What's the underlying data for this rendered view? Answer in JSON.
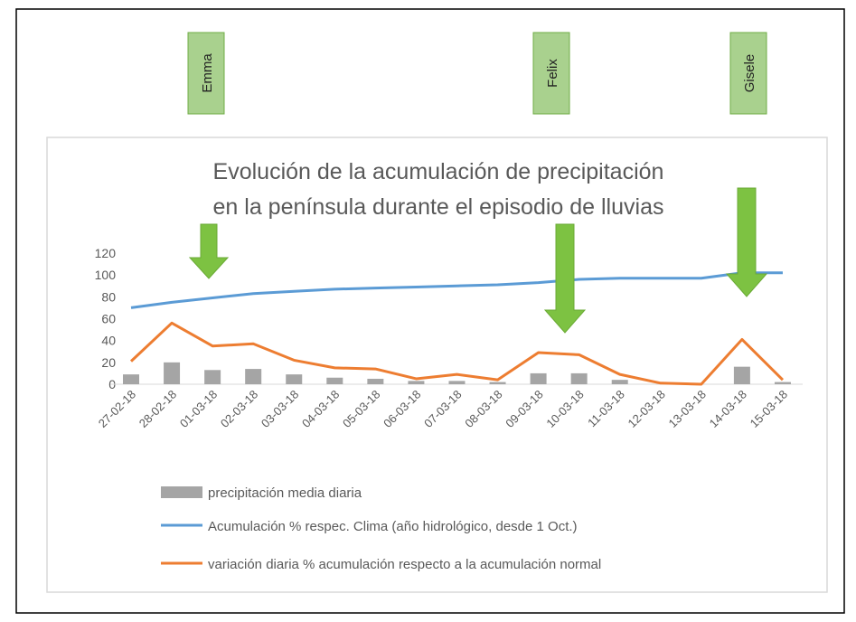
{
  "chart_data": {
    "type": "combo",
    "title": [
      "Evolución de la acumulación de precipitación",
      "en la península durante el episodio de lluvias"
    ],
    "annotations": [
      "Emma",
      "Felix",
      "Gisele"
    ],
    "categories": [
      "27-02-18",
      "28-02-18",
      "01-03-18",
      "02-03-18",
      "03-03-18",
      "04-03-18",
      "05-03-18",
      "06-03-18",
      "07-03-18",
      "08-03-18",
      "09-03-18",
      "10-03-18",
      "11-03-18",
      "12-03-18",
      "13-03-18",
      "14-03-18",
      "15-03-18"
    ],
    "series": [
      {
        "name": "precipitación media diaria",
        "type": "bar",
        "color": "#a5a5a5",
        "values": [
          9,
          20,
          13,
          14,
          9,
          6,
          5,
          3,
          3,
          2,
          10,
          10,
          4,
          0,
          0,
          16,
          2
        ]
      },
      {
        "name": "Acumulación % respec. Clima (año hidrológico, desde 1 Oct.)",
        "type": "line",
        "color": "#5b9bd5",
        "values": [
          70,
          75,
          79,
          83,
          85,
          87,
          88,
          89,
          90,
          91,
          93,
          96,
          97,
          97,
          97,
          102,
          102
        ]
      },
      {
        "name": "variación diaria % acumulación respecto a la acumulación normal",
        "type": "line",
        "color": "#ed7d31",
        "values": [
          21,
          56,
          35,
          37,
          22,
          15,
          14,
          5,
          9,
          4,
          29,
          27,
          9,
          1,
          0,
          41,
          4
        ]
      }
    ],
    "ylim": [
      0,
      120
    ],
    "yticks": [
      0,
      20,
      40,
      60,
      80,
      100,
      120
    ],
    "grid": false
  }
}
